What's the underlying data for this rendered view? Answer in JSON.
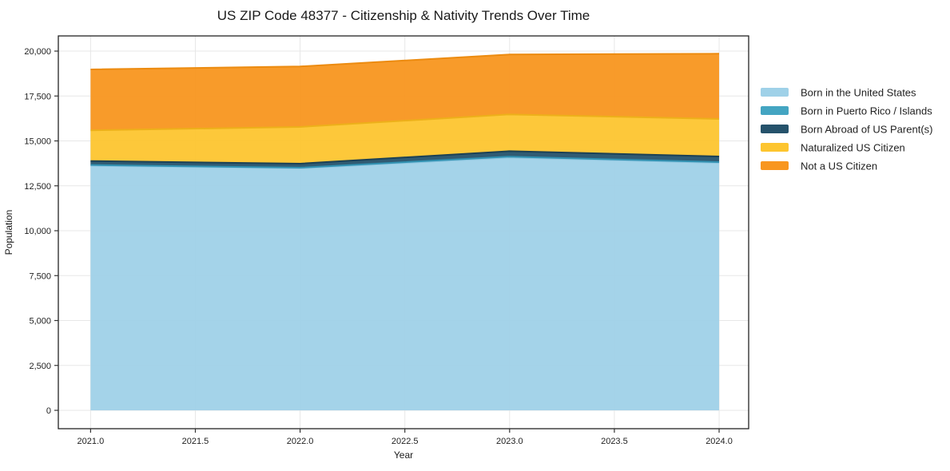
{
  "figure": {
    "title": "US ZIP Code 48377 - Citizenship & Nativity Trends Over Time"
  },
  "chart_data": {
    "type": "area",
    "stacked": true,
    "title": "US ZIP Code 48377 - Citizenship & Nativity Trends Over Time",
    "xlabel": "Year",
    "ylabel": "Population",
    "x": [
      2021,
      2022,
      2023,
      2024
    ],
    "series": [
      {
        "name": "Born in the United States",
        "values": [
          13620,
          13470,
          14075,
          13780
        ],
        "color": "#9fd1e8",
        "edge": "#8cc5e0"
      },
      {
        "name": "Born in Puerto Rico / Islands",
        "values": [
          40,
          40,
          50,
          40
        ],
        "color": "#44a5c2",
        "edge": "#3191b1"
      },
      {
        "name": "Born Abroad of US Parent(s)",
        "values": [
          220,
          225,
          305,
          315
        ],
        "color": "#25526b",
        "edge": "#1c4155"
      },
      {
        "name": "Naturalized US Citizen",
        "values": [
          1710,
          2045,
          2045,
          2090
        ],
        "color": "#fdc52f",
        "edge": "#edb01a"
      },
      {
        "name": "Not a US Citizen",
        "values": [
          3390,
          3365,
          3335,
          3630
        ],
        "color": "#f8961f",
        "edge": "#ec8b10"
      }
    ],
    "totals": [
      18980,
      19145,
      19810,
      19855
    ],
    "xticks": [
      2021.0,
      2021.5,
      2022.0,
      2022.5,
      2023.0,
      2023.5,
      2024.0
    ],
    "yticks": [
      0,
      2500,
      5000,
      7500,
      10000,
      12500,
      15000,
      17500,
      20000
    ],
    "xlim": [
      2020.846,
      2024.141
    ],
    "ylim": [
      -1022,
      20845
    ],
    "grid": true,
    "legend_position": "outside-right"
  },
  "style": {
    "grid_color": "#e7e7e7",
    "spine_color": "#222222",
    "tick_color": "#333333",
    "text_color": "#1a1a1a",
    "background": "#ffffff",
    "fill_opacity": 0.95
  }
}
